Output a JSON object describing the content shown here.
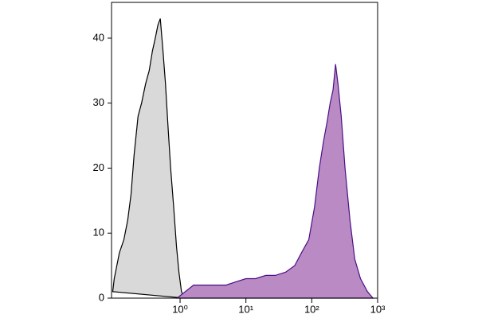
{
  "chart_data": {
    "type": "area",
    "xscale": "log",
    "xlim": [
      0.091,
      1000
    ],
    "ylim": [
      0,
      45.5
    ],
    "xticks": [
      {
        "value": 1,
        "label": "10⁰"
      },
      {
        "value": 10,
        "label": "10¹"
      },
      {
        "value": 100,
        "label": "10²"
      },
      {
        "value": 1000,
        "label": "10³"
      }
    ],
    "yticks": [
      0,
      10,
      20,
      30,
      40
    ],
    "series": [
      {
        "color": "#d9d9d9",
        "stroke": "#000000",
        "x": [
          0.095,
          0.1,
          0.12,
          0.14,
          0.16,
          0.18,
          0.2,
          0.23,
          0.26,
          0.3,
          0.34,
          0.38,
          0.42,
          0.46,
          0.5,
          0.55,
          0.6,
          0.66,
          0.72,
          0.8,
          0.88,
          0.96,
          1.05,
          1.15
        ],
        "values": [
          1,
          3,
          7,
          9,
          12,
          16,
          22,
          28,
          30,
          33,
          35,
          38,
          40,
          42,
          43,
          38,
          33,
          26,
          20,
          14,
          8,
          4,
          1,
          0
        ]
      },
      {
        "color": "#b98ac4",
        "stroke": "#4b0f86",
        "x": [
          0.9,
          1.2,
          1.6,
          2,
          3,
          4,
          5,
          7,
          10,
          14,
          20,
          28,
          40,
          55,
          70,
          90,
          110,
          130,
          150,
          170,
          190,
          210,
          230,
          250,
          280,
          320,
          380,
          450,
          550,
          700,
          850
        ],
        "values": [
          0,
          1,
          2,
          2,
          2,
          2,
          2,
          2.5,
          3,
          3,
          3.5,
          3.5,
          4,
          5,
          7,
          9,
          14,
          20,
          24,
          27,
          30,
          32,
          36,
          33,
          28,
          20,
          12,
          6,
          3,
          1,
          0
        ]
      }
    ]
  }
}
